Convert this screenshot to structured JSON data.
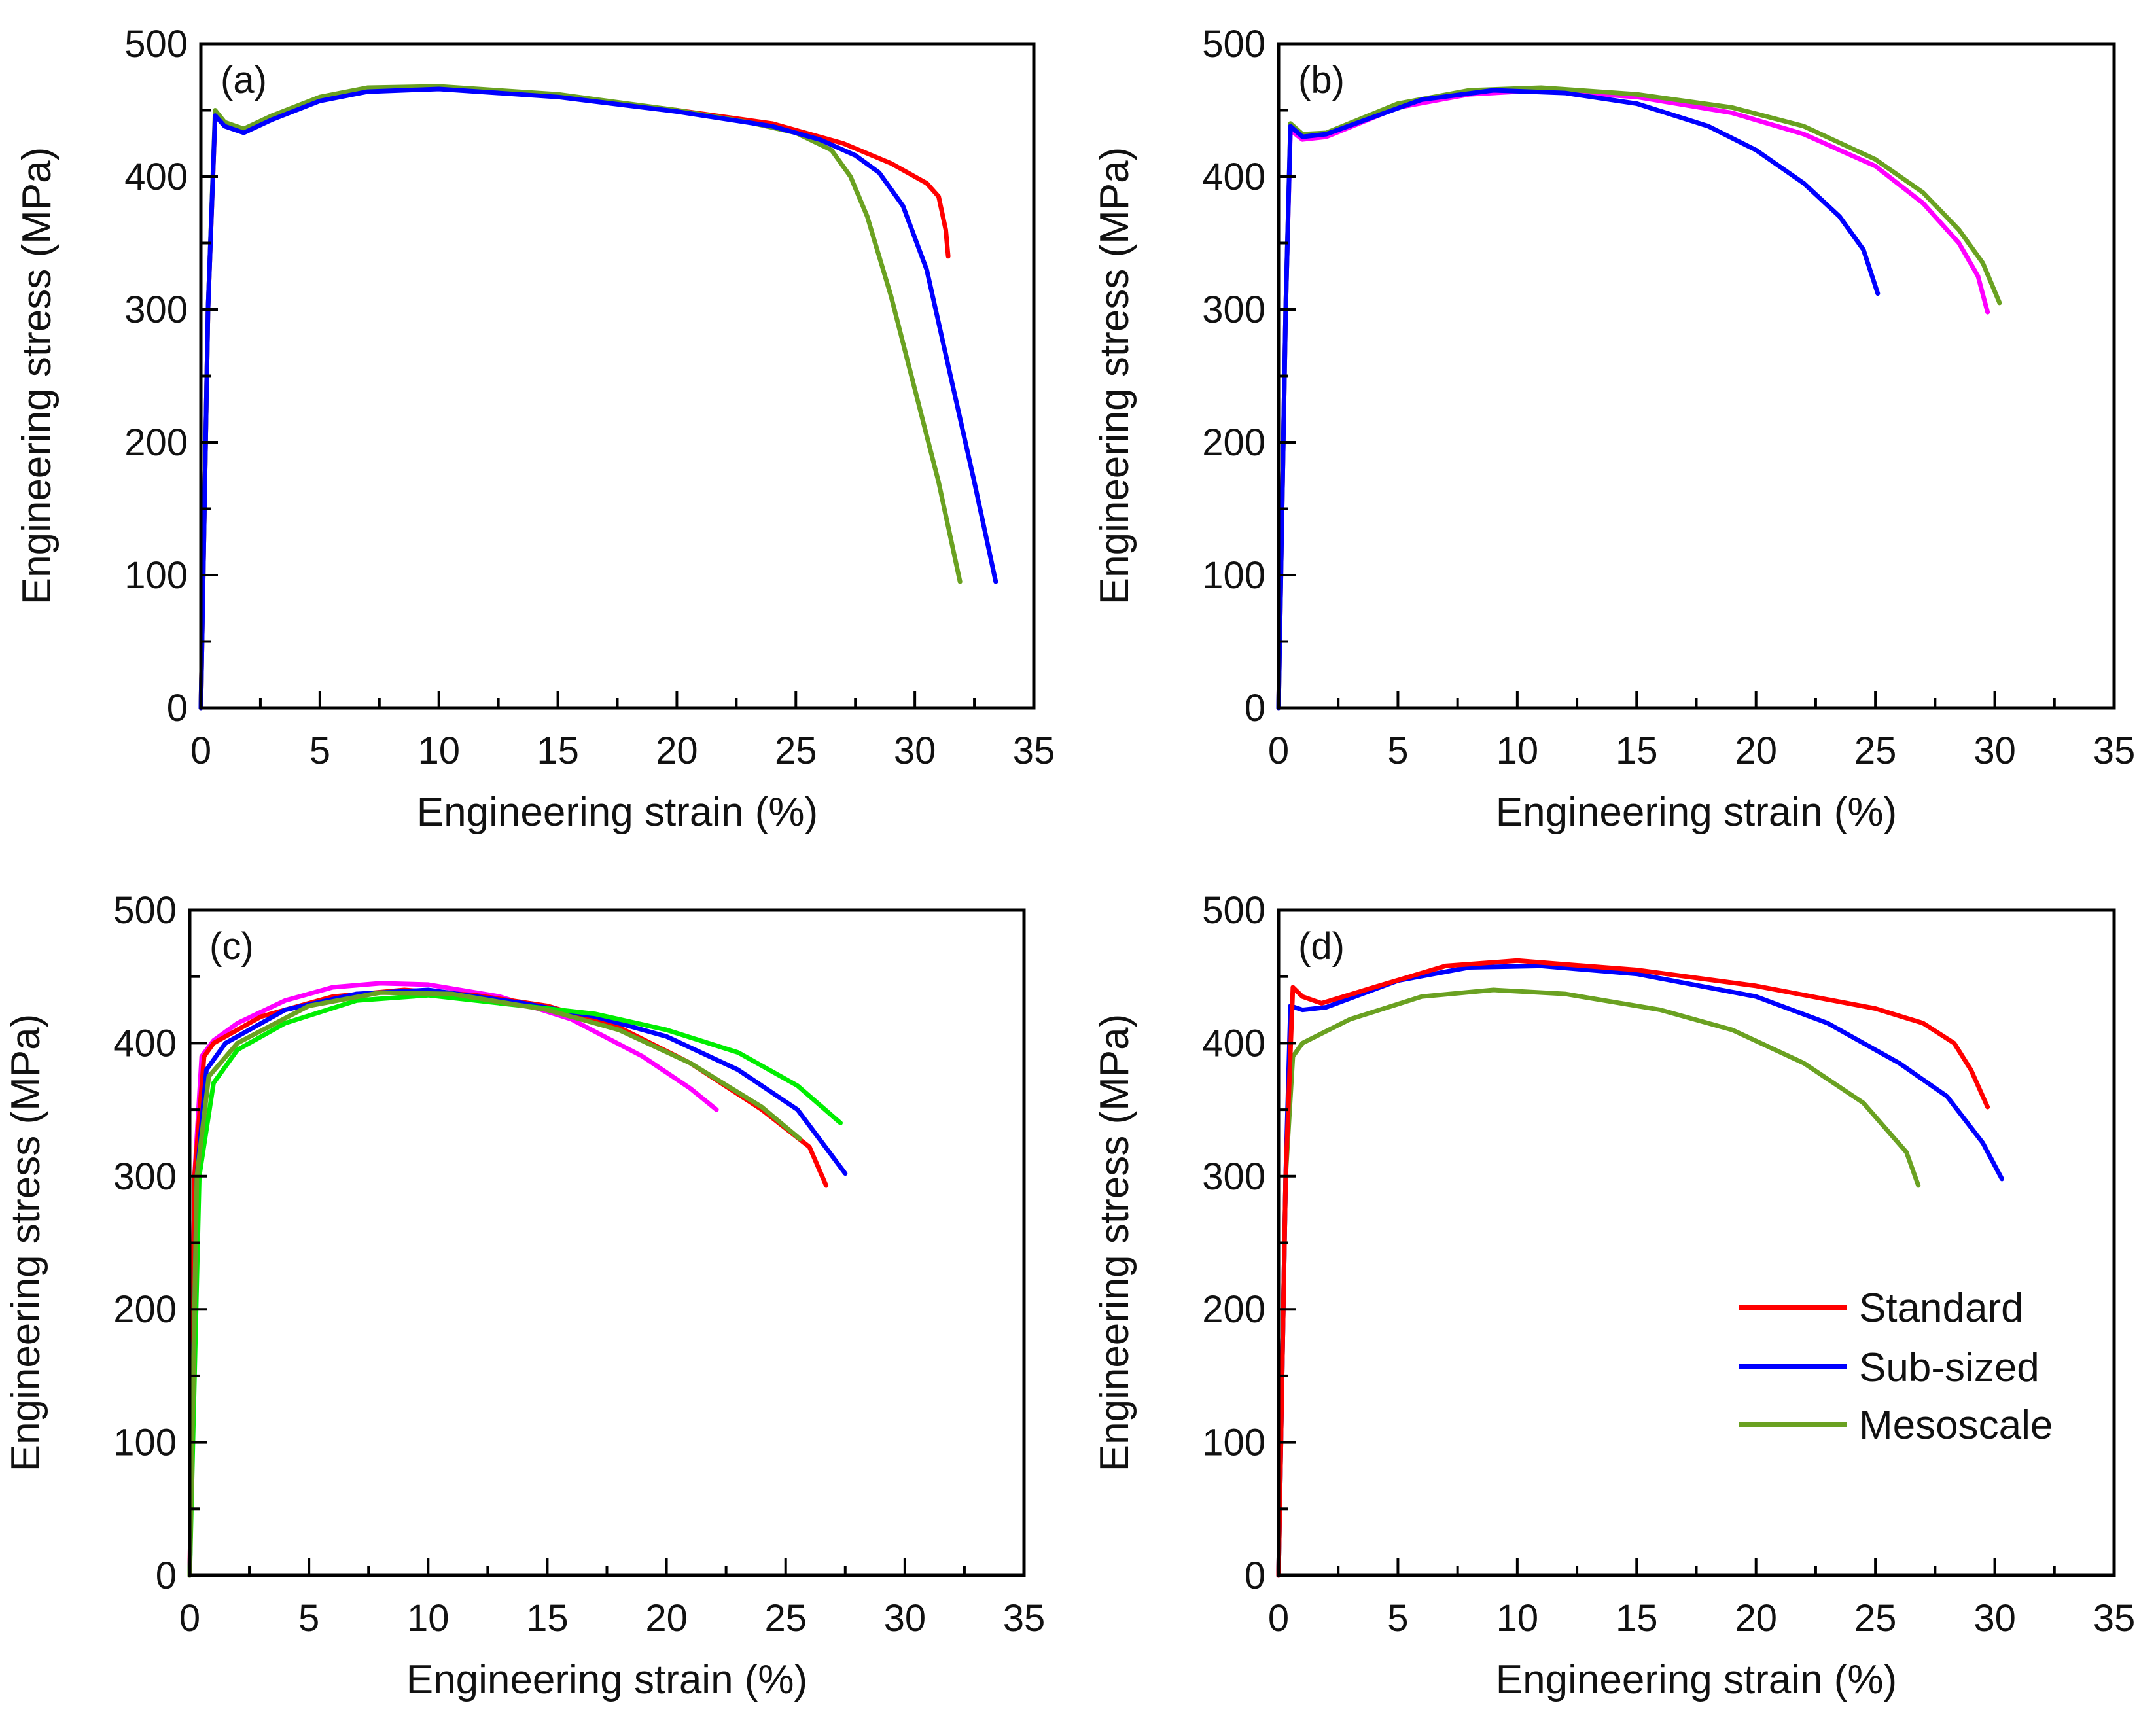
{
  "chart_data": [
    {
      "type": "line",
      "panel_label": "(a)",
      "xlabel": "Engineering strain (%)",
      "ylabel": "Engineering stress (MPa)",
      "xlim": [
        0,
        35
      ],
      "ylim": [
        0,
        500
      ],
      "xticks": [
        "0",
        "5",
        "10",
        "15",
        "20",
        "25",
        "30",
        "35"
      ],
      "yticks": [
        "0",
        "100",
        "200",
        "300",
        "400",
        "500"
      ],
      "series": [
        {
          "name": "Standard",
          "color": "#ff0000",
          "points": [
            [
              0,
              0
            ],
            [
              0.3,
              300
            ],
            [
              0.6,
              445
            ],
            [
              1,
              440
            ],
            [
              1.8,
              435
            ],
            [
              3,
              445
            ],
            [
              5,
              458
            ],
            [
              7,
              465
            ],
            [
              10,
              467
            ],
            [
              15,
              461
            ],
            [
              20,
              450
            ],
            [
              24,
              440
            ],
            [
              27,
              425
            ],
            [
              29,
              410
            ],
            [
              30.5,
              395
            ],
            [
              31,
              385
            ],
            [
              31.3,
              360
            ],
            [
              31.4,
              340
            ]
          ]
        },
        {
          "name": "Mesoscale",
          "color": "#6aa121",
          "points": [
            [
              0,
              0
            ],
            [
              0.3,
              300
            ],
            [
              0.6,
              450
            ],
            [
              1,
              441
            ],
            [
              1.8,
              436
            ],
            [
              3,
              446
            ],
            [
              5,
              460
            ],
            [
              7,
              467
            ],
            [
              10,
              468
            ],
            [
              15,
              462
            ],
            [
              20,
              450
            ],
            [
              23,
              441
            ],
            [
              25,
              433
            ],
            [
              26.5,
              420
            ],
            [
              27.3,
              400
            ],
            [
              28,
              370
            ],
            [
              29,
              310
            ],
            [
              30,
              240
            ],
            [
              31,
              170
            ],
            [
              31.9,
              95
            ]
          ]
        },
        {
          "name": "Sub-sized",
          "color": "#0000ff",
          "points": [
            [
              0,
              0
            ],
            [
              0.3,
              300
            ],
            [
              0.6,
              446
            ],
            [
              1,
              438
            ],
            [
              1.8,
              433
            ],
            [
              3,
              443
            ],
            [
              5,
              457
            ],
            [
              7,
              464
            ],
            [
              10,
              466
            ],
            [
              15,
              460
            ],
            [
              20,
              449
            ],
            [
              24,
              438
            ],
            [
              26,
              428
            ],
            [
              27.5,
              416
            ],
            [
              28.5,
              403
            ],
            [
              29.5,
              378
            ],
            [
              30.5,
              330
            ],
            [
              31.5,
              250
            ],
            [
              32.5,
              170
            ],
            [
              33.4,
              95
            ]
          ]
        }
      ]
    },
    {
      "type": "line",
      "panel_label": "(b)",
      "xlabel": "Engineering strain (%)",
      "ylabel": "Engineering stress (MPa)",
      "xlim": [
        0,
        35
      ],
      "ylim": [
        0,
        500
      ],
      "xticks": [
        "0",
        "5",
        "10",
        "15",
        "20",
        "25",
        "30",
        "35"
      ],
      "yticks": [
        "0",
        "100",
        "200",
        "300",
        "400",
        "500"
      ],
      "series": [
        {
          "color": "#ff00ff",
          "points": [
            [
              0,
              0
            ],
            [
              0.3,
              300
            ],
            [
              0.5,
              435
            ],
            [
              1,
              428
            ],
            [
              2,
              430
            ],
            [
              5,
              452
            ],
            [
              8,
              462
            ],
            [
              11,
              465
            ],
            [
              15,
              460
            ],
            [
              19,
              448
            ],
            [
              22,
              432
            ],
            [
              25,
              408
            ],
            [
              27,
              380
            ],
            [
              28.5,
              350
            ],
            [
              29.3,
              325
            ],
            [
              29.7,
              298
            ]
          ]
        },
        {
          "color": "#6aa121",
          "points": [
            [
              0,
              0
            ],
            [
              0.3,
              300
            ],
            [
              0.5,
              440
            ],
            [
              1,
              432
            ],
            [
              2,
              433
            ],
            [
              5,
              455
            ],
            [
              8,
              465
            ],
            [
              11,
              467
            ],
            [
              15,
              462
            ],
            [
              19,
              452
            ],
            [
              22,
              438
            ],
            [
              25,
              413
            ],
            [
              27,
              388
            ],
            [
              28.5,
              360
            ],
            [
              29.5,
              335
            ],
            [
              30.2,
              305
            ]
          ]
        },
        {
          "color": "#0000ff",
          "points": [
            [
              0,
              0
            ],
            [
              0.3,
              300
            ],
            [
              0.5,
              438
            ],
            [
              1,
              430
            ],
            [
              2,
              432
            ],
            [
              4,
              445
            ],
            [
              6,
              458
            ],
            [
              9,
              465
            ],
            [
              12,
              463
            ],
            [
              15,
              455
            ],
            [
              18,
              438
            ],
            [
              20,
              420
            ],
            [
              22,
              395
            ],
            [
              23.5,
              370
            ],
            [
              24.5,
              345
            ],
            [
              25.1,
              312
            ]
          ]
        }
      ]
    },
    {
      "type": "line",
      "panel_label": "(c)",
      "xlabel": "Engineering strain (%)",
      "ylabel": "Engineering stress (MPa)",
      "xlim": [
        0,
        35
      ],
      "ylim": [
        0,
        500
      ],
      "xticks": [
        "0",
        "5",
        "10",
        "15",
        "20",
        "25",
        "30",
        "35"
      ],
      "yticks": [
        "0",
        "100",
        "200",
        "300",
        "400",
        "500"
      ],
      "series": [
        {
          "color": "#ff00ff",
          "points": [
            [
              0,
              0
            ],
            [
              0.2,
              300
            ],
            [
              0.5,
              390
            ],
            [
              1,
              402
            ],
            [
              2,
              415
            ],
            [
              4,
              432
            ],
            [
              6,
              442
            ],
            [
              8,
              445
            ],
            [
              10,
              444
            ],
            [
              13,
              435
            ],
            [
              16,
              418
            ],
            [
              19,
              390
            ],
            [
              21,
              366
            ],
            [
              22.1,
              350
            ]
          ]
        },
        {
          "color": "#ff0000",
          "points": [
            [
              0,
              0
            ],
            [
              0.2,
              300
            ],
            [
              0.6,
              390
            ],
            [
              1,
              400
            ],
            [
              3,
              420
            ],
            [
              6,
              435
            ],
            [
              9,
              440
            ],
            [
              12,
              436
            ],
            [
              15,
              428
            ],
            [
              18,
              412
            ],
            [
              21,
              385
            ],
            [
              24,
              350
            ],
            [
              26,
              322
            ],
            [
              26.7,
              293
            ]
          ]
        },
        {
          "color": "#0000ff",
          "points": [
            [
              0,
              0
            ],
            [
              0.3,
              300
            ],
            [
              0.7,
              380
            ],
            [
              1.5,
              400
            ],
            [
              4,
              425
            ],
            [
              7,
              437
            ],
            [
              10,
              440
            ],
            [
              14,
              430
            ],
            [
              17,
              420
            ],
            [
              20,
              405
            ],
            [
              23,
              380
            ],
            [
              25.5,
              350
            ],
            [
              27.5,
              302
            ]
          ]
        },
        {
          "color": "#00ee00",
          "points": [
            [
              0,
              0
            ],
            [
              0.4,
              300
            ],
            [
              1,
              370
            ],
            [
              2,
              395
            ],
            [
              4,
              415
            ],
            [
              7,
              432
            ],
            [
              10,
              436
            ],
            [
              14,
              428
            ],
            [
              17,
              422
            ],
            [
              20,
              410
            ],
            [
              23,
              393
            ],
            [
              25.5,
              368
            ],
            [
              27.3,
              340
            ]
          ]
        },
        {
          "color": "#6aa121",
          "points": [
            [
              0,
              0
            ],
            [
              0.3,
              300
            ],
            [
              0.8,
              375
            ],
            [
              2,
              400
            ],
            [
              5,
              428
            ],
            [
              8,
              438
            ],
            [
              11,
              437
            ],
            [
              15,
              425
            ],
            [
              18,
              410
            ],
            [
              21,
              385
            ],
            [
              24,
              352
            ],
            [
              25.6,
              328
            ]
          ]
        }
      ]
    },
    {
      "type": "line",
      "panel_label": "(d)",
      "xlabel": "Engineering strain (%)",
      "ylabel": "Engineering stress (MPa)",
      "xlim": [
        0,
        35
      ],
      "ylim": [
        0,
        500
      ],
      "xticks": [
        "0",
        "5",
        "10",
        "15",
        "20",
        "25",
        "30",
        "35"
      ],
      "yticks": [
        "0",
        "100",
        "200",
        "300",
        "400",
        "500"
      ],
      "legend": {
        "placement": "bottom-right",
        "entries": [
          {
            "name": "Standard",
            "color": "#ff0000"
          },
          {
            "name": "Sub-sized",
            "color": "#0000ff"
          },
          {
            "name": "Mesoscale",
            "color": "#6aa121"
          }
        ]
      },
      "series": [
        {
          "name": "Mesoscale",
          "color": "#6aa121",
          "points": [
            [
              0,
              0
            ],
            [
              0.3,
              300
            ],
            [
              0.6,
              390
            ],
            [
              1,
              400
            ],
            [
              3,
              418
            ],
            [
              6,
              435
            ],
            [
              9,
              440
            ],
            [
              12,
              437
            ],
            [
              16,
              425
            ],
            [
              19,
              410
            ],
            [
              22,
              385
            ],
            [
              24.5,
              355
            ],
            [
              26.3,
              318
            ],
            [
              26.8,
              293
            ]
          ]
        },
        {
          "name": "Sub-sized",
          "color": "#0000ff",
          "points": [
            [
              0,
              0
            ],
            [
              0.3,
              300
            ],
            [
              0.5,
              428
            ],
            [
              1,
              425
            ],
            [
              2,
              427
            ],
            [
              5,
              447
            ],
            [
              8,
              457
            ],
            [
              11,
              458
            ],
            [
              15,
              452
            ],
            [
              20,
              435
            ],
            [
              23,
              415
            ],
            [
              26,
              385
            ],
            [
              28,
              360
            ],
            [
              29.5,
              325
            ],
            [
              30.3,
              298
            ]
          ]
        },
        {
          "name": "Standard",
          "color": "#ff0000",
          "points": [
            [
              0,
              0
            ],
            [
              0.3,
              300
            ],
            [
              0.6,
              442
            ],
            [
              1,
              435
            ],
            [
              1.8,
              430
            ],
            [
              4,
              442
            ],
            [
              7,
              458
            ],
            [
              10,
              462
            ],
            [
              15,
              455
            ],
            [
              20,
              443
            ],
            [
              25,
              426
            ],
            [
              27,
              415
            ],
            [
              28.3,
              400
            ],
            [
              29,
              380
            ],
            [
              29.7,
              352
            ]
          ]
        }
      ]
    }
  ]
}
